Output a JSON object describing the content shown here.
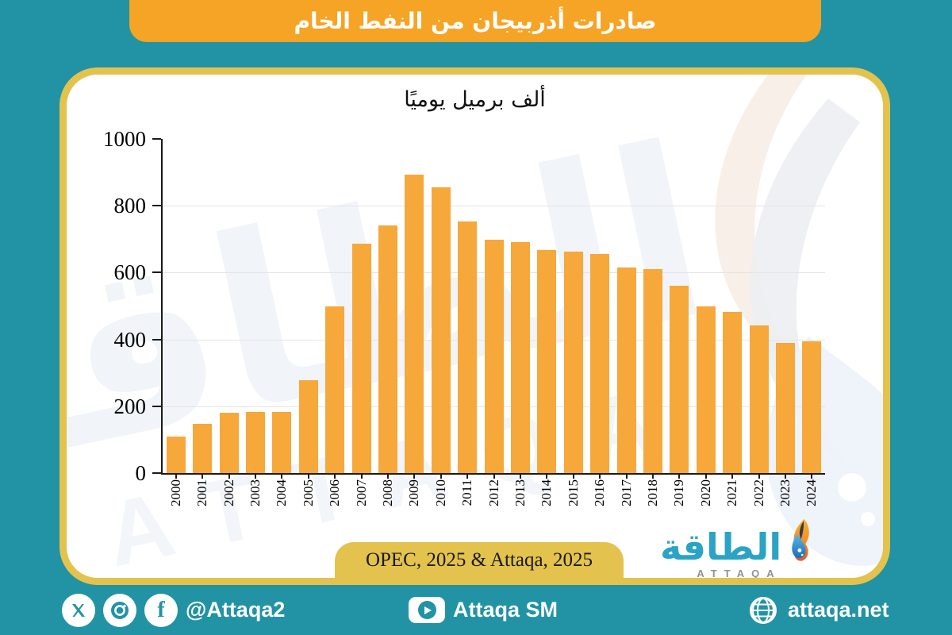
{
  "header": {
    "title": "صادرات أذربيجان من النفط الخام"
  },
  "chart_data": {
    "type": "bar",
    "title": "ألف برميل يوميًا",
    "categories": [
      "2000",
      "2001",
      "2002",
      "2003",
      "2004",
      "2005",
      "2006",
      "2007",
      "2008",
      "2009",
      "2010",
      "2011",
      "2012",
      "2013",
      "2014",
      "2015",
      "2016",
      "2017",
      "2018",
      "2019",
      "2020",
      "2021",
      "2022",
      "2023",
      "2024"
    ],
    "values": [
      110,
      148,
      180,
      183,
      182,
      278,
      500,
      687,
      742,
      893,
      856,
      752,
      699,
      691,
      668,
      662,
      655,
      616,
      610,
      560,
      500,
      482,
      443,
      390,
      394
    ],
    "ylim": [
      0,
      1000
    ],
    "yticks": [
      0,
      200,
      400,
      600,
      800,
      1000
    ],
    "grid": true,
    "legend": "none",
    "bar_color": "#F6A83B"
  },
  "source": {
    "label": "OPEC, 2025 & Attaqa, 2025"
  },
  "logo": {
    "arabic": "الطاقة",
    "latin": "ATTAQA"
  },
  "footer": {
    "left": {
      "handle": "@Attaqa2"
    },
    "center": {
      "label": "Attaqa SM"
    },
    "right": {
      "label": "attaqa.net"
    }
  },
  "colors": {
    "background": "#2193A4",
    "header_orange": "#F5A425",
    "bar_orange": "#F6A83B",
    "gold": "#E3C24E",
    "card": "#FFFFFF",
    "logo_teal": "#2BA3C4"
  }
}
